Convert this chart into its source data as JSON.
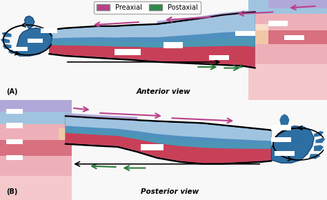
{
  "legend_items": [
    {
      "label": "Preaxial",
      "color": "#b8408a"
    },
    {
      "label": "Postaxial",
      "color": "#2a8a4a"
    }
  ],
  "label_A": "(A)",
  "label_B": "(B)",
  "anterior_label": "Anterior view",
  "posterior_label": "Posterior view",
  "bg_color": "#f8f8f8",
  "colors": {
    "blue_dark": "#2e6fa3",
    "blue_mid": "#5090c0",
    "blue_light": "#a0c4e0",
    "teal": "#4a9ab0",
    "red_dark": "#c84058",
    "red_mid": "#d87080",
    "red_light": "#eeb0b8",
    "pink_light": "#f5c8cc",
    "purple": "#8878c0",
    "purple_light": "#b0a8d8",
    "skin": "#f0c8a8",
    "skin_light": "#f8ddc8"
  },
  "arrow_preaxial_color": "#b8408a",
  "arrow_postaxial_color": "#2a7a3a",
  "arrow_black_color": "#222222"
}
